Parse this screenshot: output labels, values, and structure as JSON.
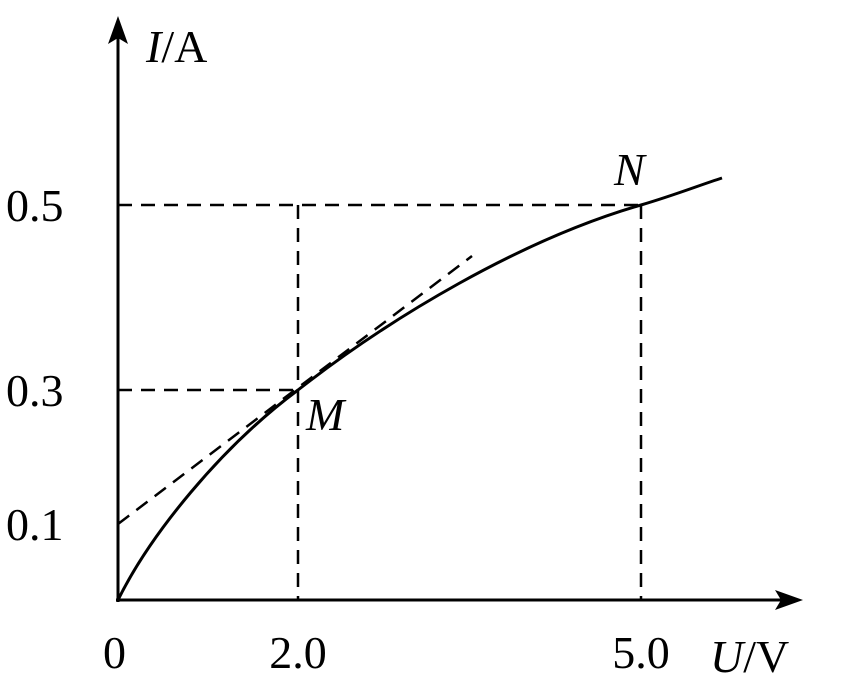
{
  "axes": {
    "y": {
      "quantity": "I",
      "unit": "/A",
      "ticks": [
        "0.5",
        "0.3",
        "0.1"
      ]
    },
    "x": {
      "quantity": "U",
      "unit": "/V",
      "ticks": [
        "0",
        "2.0",
        "5.0"
      ]
    }
  },
  "points": [
    {
      "label": "M"
    },
    {
      "label": "N"
    }
  ]
}
